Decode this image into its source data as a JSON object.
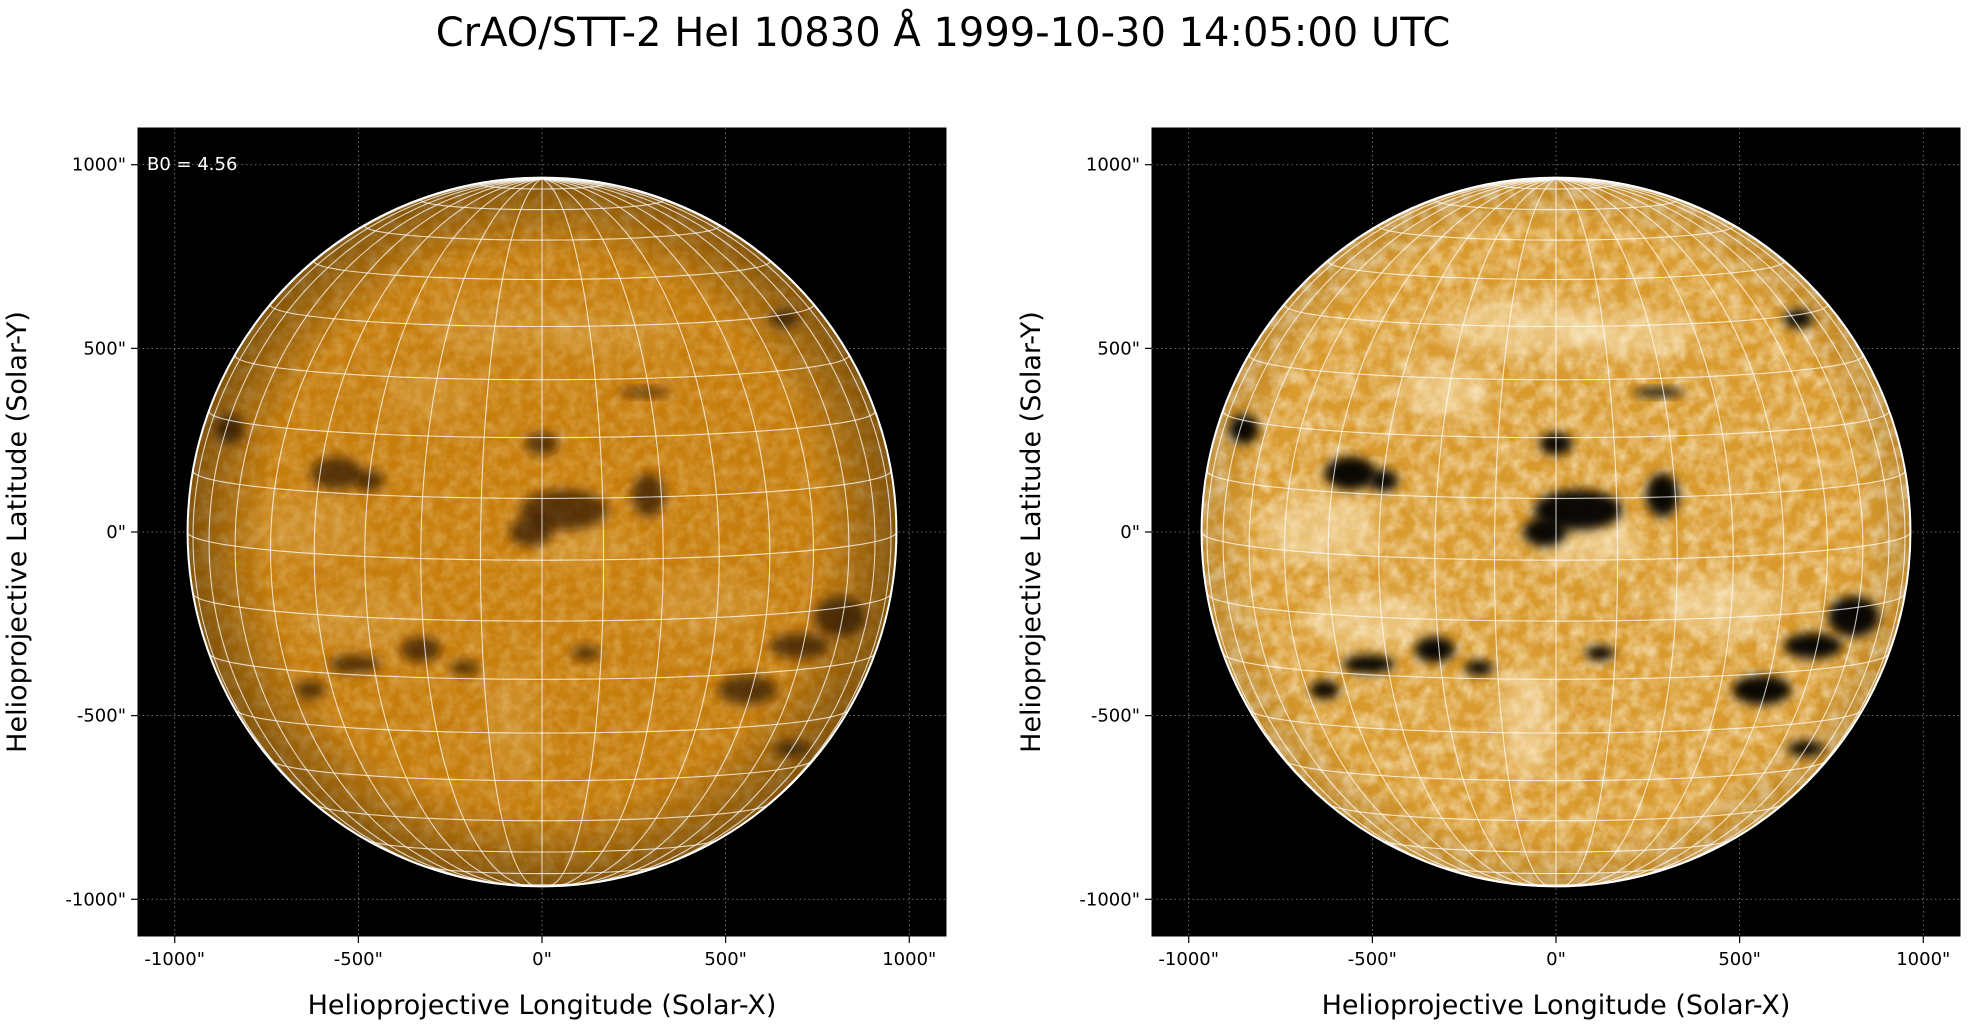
{
  "figure": {
    "title": "CrAO/STT-2 HeI 10830 Å 1999-10-30 14:05:00 UTC",
    "annotation": "B0 = 4.56"
  },
  "axes": {
    "xlabel": "Helioprojective Longitude (Solar-X)",
    "ylabel": "Helioprojective Latitude (Solar-Y)",
    "xticks": [
      "-1000\"",
      "-500\"",
      "0\"",
      "500\"",
      "1000\""
    ],
    "yticks": [
      "1000\"",
      "500\"",
      "0\"",
      "-500\"",
      "-1000\""
    ],
    "tick_values": [
      -1000,
      -500,
      0,
      500,
      1000
    ],
    "range": [
      -1100,
      1100
    ],
    "solar_radius_arcsec": 965,
    "grid": true
  },
  "colors": {
    "background": "#000000",
    "disk_base_left": "#c97f0c",
    "disk_base_right": "#d99a2e",
    "limb": "#ffffff",
    "grid_lines": "#ffffff"
  },
  "panels": [
    {
      "name": "left",
      "contrast": "normal"
    },
    {
      "name": "right",
      "contrast": "enhanced"
    }
  ],
  "features": [
    {
      "x": -560,
      "y": 160,
      "rx": 70,
      "ry": 45
    },
    {
      "x": -470,
      "y": 140,
      "rx": 40,
      "ry": 30
    },
    {
      "x": 0,
      "y": 240,
      "rx": 45,
      "ry": 30
    },
    {
      "x": 60,
      "y": 60,
      "rx": 120,
      "ry": 55
    },
    {
      "x": -30,
      "y": 0,
      "rx": 60,
      "ry": 40
    },
    {
      "x": 290,
      "y": 100,
      "rx": 45,
      "ry": 60
    },
    {
      "x": 280,
      "y": 380,
      "rx": 70,
      "ry": 12
    },
    {
      "x": 810,
      "y": -230,
      "rx": 70,
      "ry": 55
    },
    {
      "x": 700,
      "y": -310,
      "rx": 80,
      "ry": 35
    },
    {
      "x": 560,
      "y": -430,
      "rx": 80,
      "ry": 40
    },
    {
      "x": -330,
      "y": -320,
      "rx": 55,
      "ry": 35
    },
    {
      "x": -510,
      "y": -360,
      "rx": 70,
      "ry": 25
    },
    {
      "x": -630,
      "y": -430,
      "rx": 40,
      "ry": 25
    },
    {
      "x": -210,
      "y": -370,
      "rx": 40,
      "ry": 20
    },
    {
      "x": 120,
      "y": -330,
      "rx": 40,
      "ry": 20
    },
    {
      "x": 680,
      "y": -590,
      "rx": 50,
      "ry": 20
    },
    {
      "x": -850,
      "y": 280,
      "rx": 40,
      "ry": 40
    },
    {
      "x": 660,
      "y": 580,
      "rx": 40,
      "ry": 25
    }
  ],
  "plages": [
    {
      "x": -100,
      "y": 560,
      "rx": 220,
      "ry": 70
    },
    {
      "x": 200,
      "y": 540,
      "rx": 180,
      "ry": 60
    },
    {
      "x": -640,
      "y": 10,
      "rx": 160,
      "ry": 90
    },
    {
      "x": 100,
      "y": -30,
      "rx": 140,
      "ry": 60
    },
    {
      "x": -80,
      "y": -520,
      "rx": 70,
      "ry": 160
    },
    {
      "x": -500,
      "y": -240,
      "rx": 180,
      "ry": 70
    },
    {
      "x": 450,
      "y": -200,
      "rx": 160,
      "ry": 80
    },
    {
      "x": -300,
      "y": 380,
      "rx": 120,
      "ry": 70
    }
  ]
}
